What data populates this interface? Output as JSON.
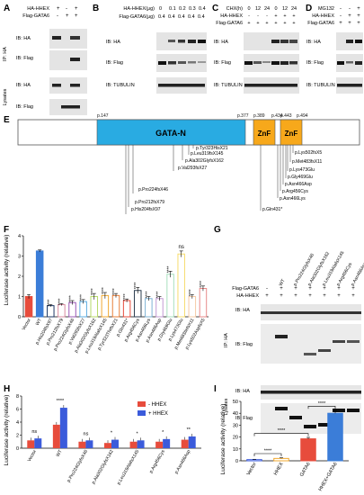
{
  "panels": {
    "A": {
      "letter": "A",
      "rows": [
        "HA-HHEX",
        "Flag-GATA6"
      ],
      "signs": [
        [
          "+",
          "-",
          "+"
        ],
        [
          "-",
          "+",
          "+"
        ]
      ],
      "side_groups": [
        "IP: HA",
        "Lysates"
      ],
      "blot_labels": [
        "IB: HA",
        "IB: Flag",
        "IB: HA",
        "IB: Flag"
      ]
    },
    "B": {
      "letter": "B",
      "rows": [
        "HA-HHEX(μg)",
        "Flag-GATA6(μg)"
      ],
      "values": [
        [
          "0",
          "0.1",
          "0.2",
          "0.3",
          "0.4"
        ],
        [
          "0.4",
          "0.4",
          "0.4",
          "0.4",
          "0.4"
        ]
      ],
      "blot_labels": [
        "IB: HA",
        "IB: Flag",
        "IB: TUBULIN"
      ]
    },
    "C": {
      "letter": "C",
      "rows": [
        "CHX(h)",
        "HA-HHEX",
        "Flag-GATA6"
      ],
      "values": [
        [
          "0",
          "12",
          "24",
          "0",
          "12",
          "24"
        ],
        [
          "-",
          "-",
          "-",
          "+",
          "+",
          "+"
        ],
        [
          "+",
          "+",
          "+",
          "+",
          "+",
          "+"
        ]
      ],
      "blot_labels": [
        "IB: HA",
        "IB: Flag",
        "IB: TUBULIN"
      ]
    },
    "D": {
      "letter": "D",
      "rows": [
        "MG132",
        "HA-HHEX",
        "Flag-GATA6"
      ],
      "values": [
        [
          "-",
          "-",
          "+"
        ],
        [
          "-",
          "+",
          "+"
        ],
        [
          "+",
          "+",
          "+"
        ]
      ],
      "blot_labels": [
        "IB: HA",
        "IB: Flag",
        "IB: TUBULIN"
      ]
    },
    "E": {
      "letter": "E",
      "positions": [
        "p.147",
        "p.377",
        "p.389",
        "p.434",
        "p.443",
        "p.494"
      ],
      "domains": [
        "GATA-N",
        "ZnF",
        "ZnF"
      ],
      "mutations": [
        "p.Pro212fsX79",
        "p.His204fsX97",
        "p.Pro224fsX46",
        "p.Val293fsX27",
        "p.Ala302GlyfsX162",
        "p.Leu319fsX145",
        "p.Tyr323HisX21",
        "p.Gln431*",
        "p.Asn466Lys",
        "p.Arg456Cys",
        "p.Asn466Asp",
        "p.Gly469Glu",
        "p.Lys473Glu",
        "p.Met483fsX11",
        "p.Lys502fsX5"
      ]
    },
    "F": {
      "letter": "F",
      "ylabel": "Luciferase activity (relative)",
      "yticks": [
        "0",
        "1",
        "2",
        "3",
        "4"
      ],
      "ns_label": "ns",
      "sig_marks": [
        "****",
        "****",
        "****",
        "****",
        "****",
        "****",
        "****",
        "****",
        "****",
        "****",
        "****",
        "****",
        "****",
        "****",
        "****",
        "****"
      ]
    },
    "G": {
      "letter": "G",
      "top_labels": [
        "Flag-GATA6",
        "HA-HHEX"
      ],
      "columns": [
        "-",
        "WT",
        "p.Pro224GlyfsX46",
        "p.Ala302GlyfsX162",
        "p.Leu319AlafsX145",
        "p.Arg456Cys",
        "p.Asn466Asp"
      ],
      "signs": [
        [
          "-",
          "+",
          "+",
          "+",
          "+",
          "+",
          "+"
        ],
        [
          "+",
          "+",
          "+",
          "+",
          "+",
          "+",
          "+"
        ]
      ],
      "side_groups": [
        "IP: HA",
        "Lysates"
      ],
      "blot_labels": [
        "IB: HA",
        "IB: Flag",
        "IB: HA",
        "IB: Flag"
      ]
    },
    "H": {
      "letter": "H",
      "ylabel": "Luciferase activity (relative)",
      "yticks": [
        "0",
        "2",
        "4",
        "6",
        "8"
      ],
      "sig_marks": [
        "ns",
        "****",
        "ns",
        "*",
        "*",
        "*",
        "**"
      ]
    },
    "I": {
      "letter": "I",
      "ylabel": "Luciferase activity (relative)",
      "yticks": [
        "0",
        "10",
        "20",
        "30",
        "40",
        "50"
      ],
      "sig_marks": [
        "****",
        "****",
        "****"
      ]
    }
  },
  "chart_data": [
    {
      "panel": "F",
      "type": "bar",
      "categories": [
        "Vector",
        "WT",
        "p.His204fsX97",
        "p.Pro212fsX79",
        "p.Pro224GlyfsX46",
        "p.Val293fsX27",
        "p.Ala302GlyfsX162",
        "p.Leu319AlafsX145",
        "p.Tyr323ThrfsX21",
        "p.Gln431*",
        "p.Arg456Cys",
        "p.Asn466Lys",
        "p.Asn466Asp",
        "p.Gly469Glu",
        "p.Lys473Glu",
        "p.Met483IlefsX11",
        "p.Lys502AspfsX5"
      ],
      "values": [
        1.0,
        3.25,
        0.55,
        0.6,
        0.7,
        0.75,
        1.0,
        1.05,
        1.05,
        0.8,
        1.3,
        0.9,
        0.9,
        2.1,
        3.1,
        1.0,
        1.4
      ],
      "errors": [
        0.1,
        0.05,
        0.05,
        0.05,
        0.1,
        0.1,
        0.15,
        0.15,
        0.1,
        0.08,
        0.15,
        0.1,
        0.1,
        0.15,
        0.15,
        0.1,
        0.12
      ],
      "colors": [
        "#e74c3c",
        "#3b7dd8",
        "#1f3864",
        "#d98ca0",
        "#9b59b6",
        "#5dade2",
        "#b7d96a",
        "#f0a830",
        "#e87f3a",
        "#e74c3c",
        "#2c3e50",
        "#7fb3d5",
        "#c39bd3",
        "#a9dfbf",
        "#f7dc6f",
        "#f5cba7",
        "#e88a8a"
      ],
      "ylabel": "Luciferase activity (relative)",
      "ylim": [
        0,
        4
      ]
    },
    {
      "panel": "H",
      "type": "bar",
      "categories": [
        "Vector",
        "WT",
        "p.Pro224GlyfsX46",
        "p.Ala302GlyfsX162",
        "p.Leu319AlafsX145",
        "p.Arg456Cys",
        "p.Asn466Asp"
      ],
      "series": [
        {
          "name": "- HHEX",
          "values": [
            1.2,
            3.6,
            1.0,
            0.8,
            1.0,
            1.0,
            1.3
          ],
          "color": "#e74c3c"
        },
        {
          "name": "+ HHEX",
          "values": [
            1.5,
            6.2,
            1.2,
            1.3,
            1.2,
            1.4,
            1.8
          ],
          "color": "#3b5bdb"
        }
      ],
      "ylabel": "Luciferase activity (relative)",
      "ylim": [
        0,
        8
      ],
      "legend": "top-right"
    },
    {
      "panel": "I",
      "type": "bar",
      "categories": [
        "Vector",
        "HHEX",
        "GATA6",
        "HHEX+GATA6"
      ],
      "values": [
        1,
        2,
        18.5,
        40
      ],
      "errors": [
        0.3,
        0.5,
        1.2,
        2.5
      ],
      "colors": [
        "#3b5bdb",
        "#f0a830",
        "#e74c3c",
        "#3b7dd8"
      ],
      "ylabel": "Luciferase activity (relative)",
      "ylim": [
        0,
        50
      ]
    }
  ]
}
